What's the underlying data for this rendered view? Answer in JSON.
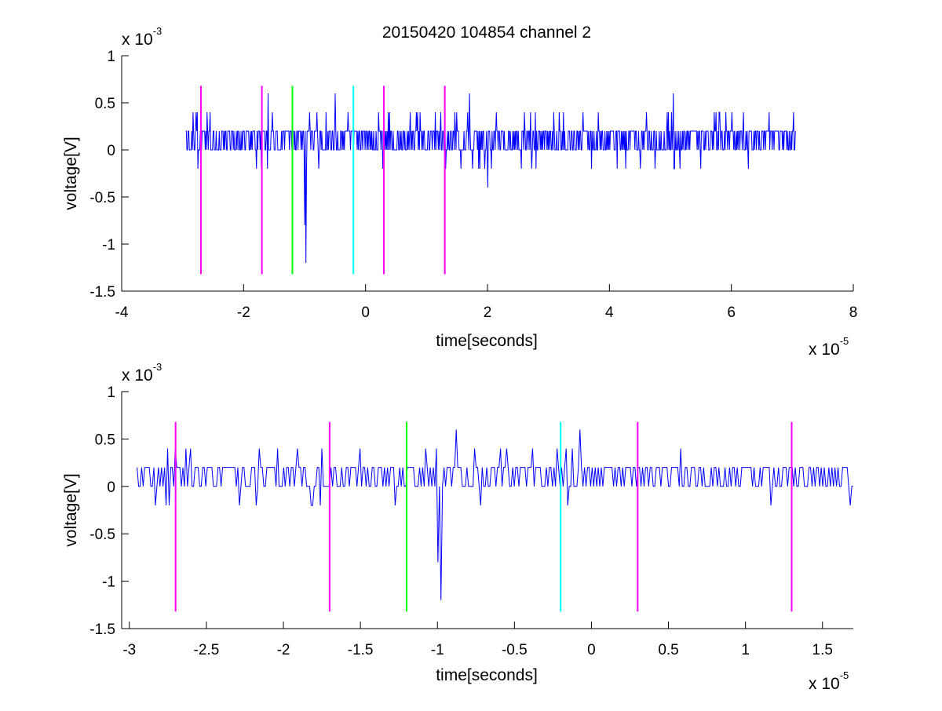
{
  "figure": {
    "title": "20150420 104854 channel 2"
  },
  "chart_data": [
    {
      "type": "line",
      "title": "20150420 104854 channel 2",
      "xlabel": "time[seconds]",
      "ylabel": "voltage[V]",
      "x_multiplier": {
        "base": "x 10",
        "exponent": "-5"
      },
      "y_multiplier": {
        "base": "x 10",
        "exponent": "-3"
      },
      "x_unit_scale": 1e-05,
      "y_unit_scale": 0.001,
      "xlim": [
        -4,
        8
      ],
      "ylim": [
        -1.5,
        1
      ],
      "xticks": [
        -4,
        -2,
        0,
        2,
        4,
        6,
        8
      ],
      "yticks": [
        -1.5,
        -1,
        -0.5,
        0,
        0.5,
        1
      ],
      "xtick_labels": [
        "-4",
        "-2",
        "0",
        "2",
        "4",
        "6",
        "8"
      ],
      "ytick_labels": [
        "-1.5",
        "-1",
        "-0.5",
        "0",
        "0.5",
        "1"
      ],
      "grid": false,
      "series": [
        {
          "color": "#0000ff",
          "x_range": [
            -2.95,
            7.05
          ],
          "samples": 1000,
          "baseline": 0.1,
          "noise_levels": [
            0,
            0.2
          ],
          "occasional_levels": [
            -0.2,
            0.4,
            0.6
          ],
          "events": [
            {
              "x": -0.98,
              "y": -1.2
            },
            {
              "x": -1.0,
              "y": -0.8
            },
            {
              "x": -0.5,
              "y": 0.6
            },
            {
              "x": 2.0,
              "y": -0.4
            },
            {
              "x": 5.05,
              "y": 0.6
            },
            {
              "x": -1.6,
              "y": 0.6
            },
            {
              "x": 1.7,
              "y": 0.6
            }
          ]
        }
      ],
      "markers": [
        {
          "x": -2.7,
          "color": "#ff00ff",
          "y_range": [
            -1.32,
            0.68
          ]
        },
        {
          "x": -1.7,
          "color": "#ff00ff",
          "y_range": [
            -1.32,
            0.68
          ]
        },
        {
          "x": -1.2,
          "color": "#00ff00",
          "y_range": [
            -1.32,
            0.68
          ]
        },
        {
          "x": -0.2,
          "color": "#00ffff",
          "y_range": [
            -1.32,
            0.68
          ]
        },
        {
          "x": 0.3,
          "color": "#ff00ff",
          "y_range": [
            -1.32,
            0.68
          ]
        },
        {
          "x": 1.3,
          "color": "#ff00ff",
          "y_range": [
            -1.32,
            0.68
          ]
        }
      ]
    },
    {
      "type": "line",
      "title": "",
      "xlabel": "time[seconds]",
      "ylabel": "voltage[V]",
      "x_multiplier": {
        "base": "x 10",
        "exponent": "-5"
      },
      "y_multiplier": {
        "base": "x 10",
        "exponent": "-3"
      },
      "x_unit_scale": 1e-05,
      "y_unit_scale": 0.001,
      "xlim": [
        -3.05,
        1.7
      ],
      "ylim": [
        -1.5,
        1
      ],
      "xticks": [
        -3,
        -2.5,
        -2,
        -1.5,
        -1,
        -0.5,
        0,
        0.5,
        1,
        1.5
      ],
      "yticks": [
        -1.5,
        -1,
        -0.5,
        0,
        0.5,
        1
      ],
      "xtick_labels": [
        "-3",
        "-2.5",
        "-2",
        "-1.5",
        "-1",
        "-0.5",
        "0",
        "0.5",
        "1",
        "1.5"
      ],
      "ytick_labels": [
        "-1.5",
        "-1",
        "-0.5",
        "0",
        "0.5",
        "1"
      ],
      "grid": false,
      "series": [
        {
          "color": "#0000ff",
          "x_range": [
            -2.95,
            1.7
          ],
          "samples": 470,
          "baseline": 0.1,
          "noise_levels": [
            0,
            0.2
          ],
          "occasional_levels": [
            -0.2,
            0.4,
            0.6
          ],
          "events": [
            {
              "x": -0.98,
              "y": -1.2
            },
            {
              "x": -1.0,
              "y": -0.8
            },
            {
              "x": -0.88,
              "y": 0.6
            },
            {
              "x": -0.07,
              "y": 0.6
            },
            {
              "x": -1.75,
              "y": 0.4
            },
            {
              "x": -2.7,
              "y": 0.4
            }
          ]
        }
      ],
      "markers": [
        {
          "x": -2.7,
          "color": "#ff00ff",
          "y_range": [
            -1.32,
            0.68
          ]
        },
        {
          "x": -1.7,
          "color": "#ff00ff",
          "y_range": [
            -1.32,
            0.68
          ]
        },
        {
          "x": -1.2,
          "color": "#00ff00",
          "y_range": [
            -1.32,
            0.68
          ]
        },
        {
          "x": -0.2,
          "color": "#00ffff",
          "y_range": [
            -1.32,
            0.68
          ]
        },
        {
          "x": 0.3,
          "color": "#ff00ff",
          "y_range": [
            -1.32,
            0.68
          ]
        },
        {
          "x": 1.3,
          "color": "#ff00ff",
          "y_range": [
            -1.32,
            0.68
          ]
        }
      ]
    }
  ]
}
